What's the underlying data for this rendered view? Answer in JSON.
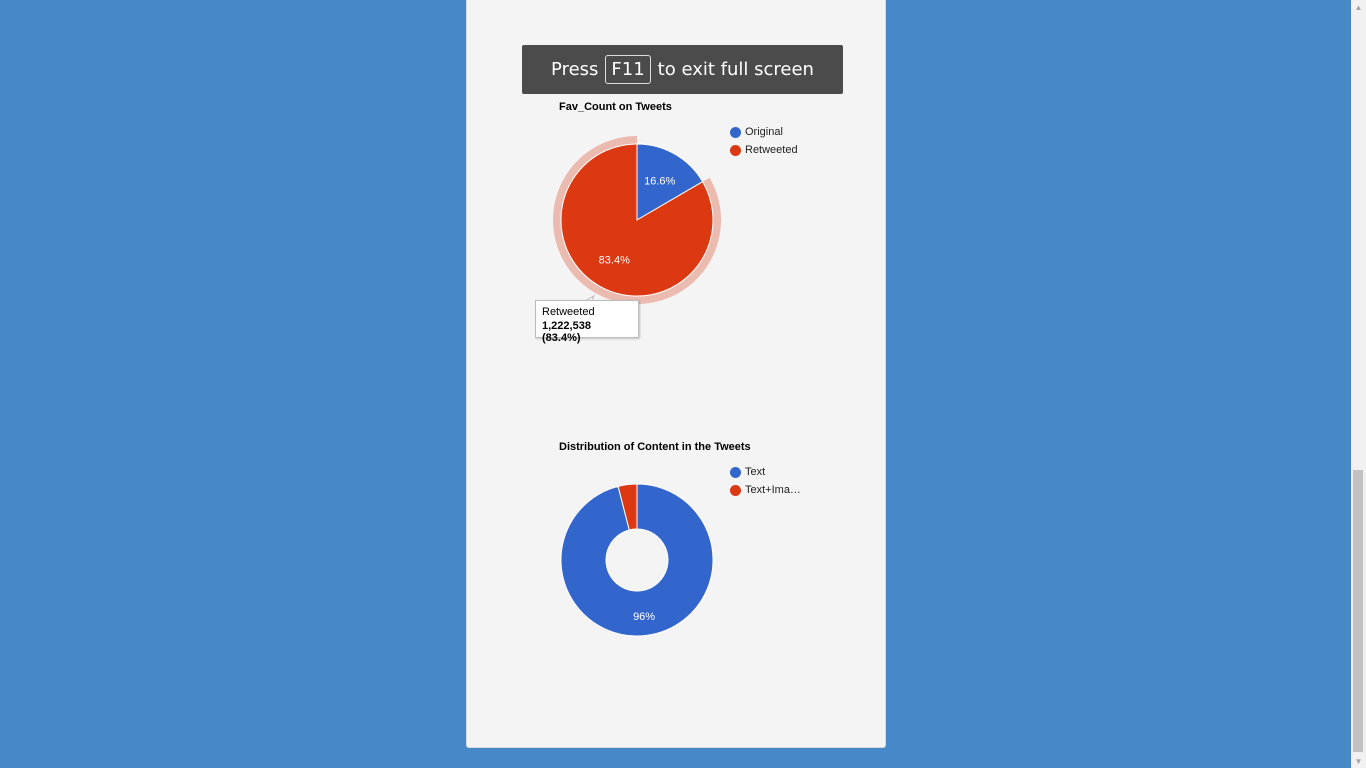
{
  "fullscreen_banner": {
    "prefix": "Press",
    "key": "F11",
    "suffix": "to exit full screen"
  },
  "charts": [
    {
      "title": "Fav_Count on Tweets",
      "legend": [
        {
          "label": "Original",
          "color": "#3366cc"
        },
        {
          "label": "Retweeted",
          "color": "#dc3912"
        }
      ],
      "tooltip": {
        "label": "Retweeted",
        "value": "1,222,538 (83.4%)"
      }
    },
    {
      "title": "Distribution of Content in the Tweets",
      "legend": [
        {
          "label": "Text",
          "color": "#3366cc"
        },
        {
          "label": "Text+Ima…",
          "color": "#dc3912"
        }
      ]
    }
  ],
  "chart_data": [
    {
      "type": "pie",
      "title": "Fav_Count on Tweets",
      "slices": [
        {
          "label": "Original",
          "percent": 16.6,
          "percent_label": "16.6%",
          "color": "#3366cc"
        },
        {
          "label": "Retweeted",
          "percent": 83.4,
          "percent_label": "83.4%",
          "value": 1222538,
          "color": "#dc3912",
          "highlighted": true
        }
      ],
      "legend_position": "right"
    },
    {
      "type": "pie",
      "title": "Distribution of Content in the Tweets",
      "donut": true,
      "slices": [
        {
          "label": "Text",
          "percent": 96,
          "percent_label": "96%",
          "color": "#3366cc"
        },
        {
          "label": "Text+Ima…",
          "percent": 4,
          "percent_label": "",
          "color": "#dc3912"
        }
      ],
      "legend_position": "right"
    }
  ]
}
